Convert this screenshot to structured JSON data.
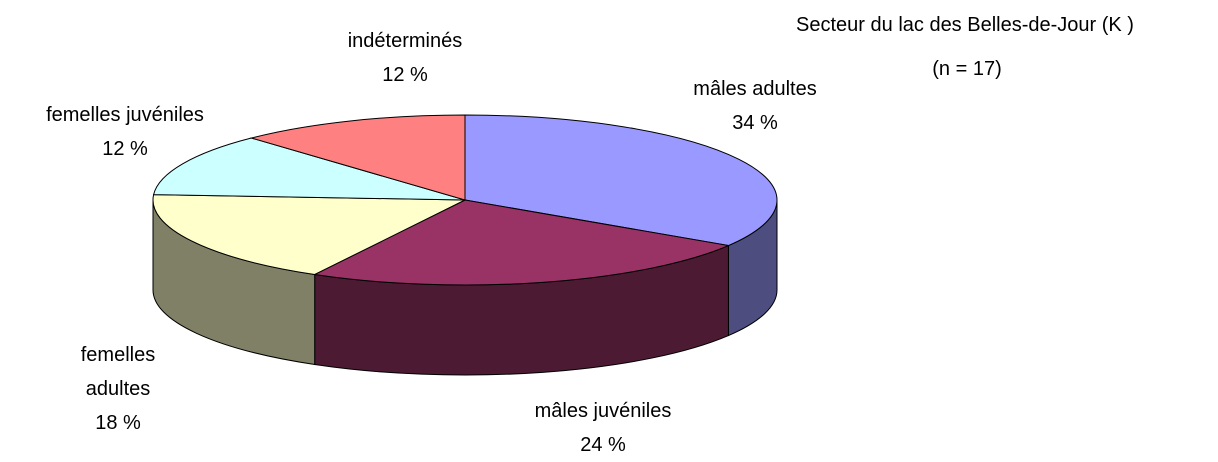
{
  "chart_data": {
    "type": "pie",
    "title": "Secteur du lac des Belles-de-Jour (K )",
    "subtitle": "(n = 17)",
    "categories": [
      "mâles adultes",
      "mâles juvéniles",
      "femelles adultes",
      "femelles juvéniles",
      "indéterminés"
    ],
    "values": [
      34,
      24,
      18,
      12,
      12
    ],
    "value_labels": [
      "34 %",
      "24 %",
      "18 %",
      "12 %",
      "12 %"
    ],
    "colors": [
      "#9999ff",
      "#993366",
      "#ffffcc",
      "#ccffff",
      "#ff8080"
    ]
  }
}
